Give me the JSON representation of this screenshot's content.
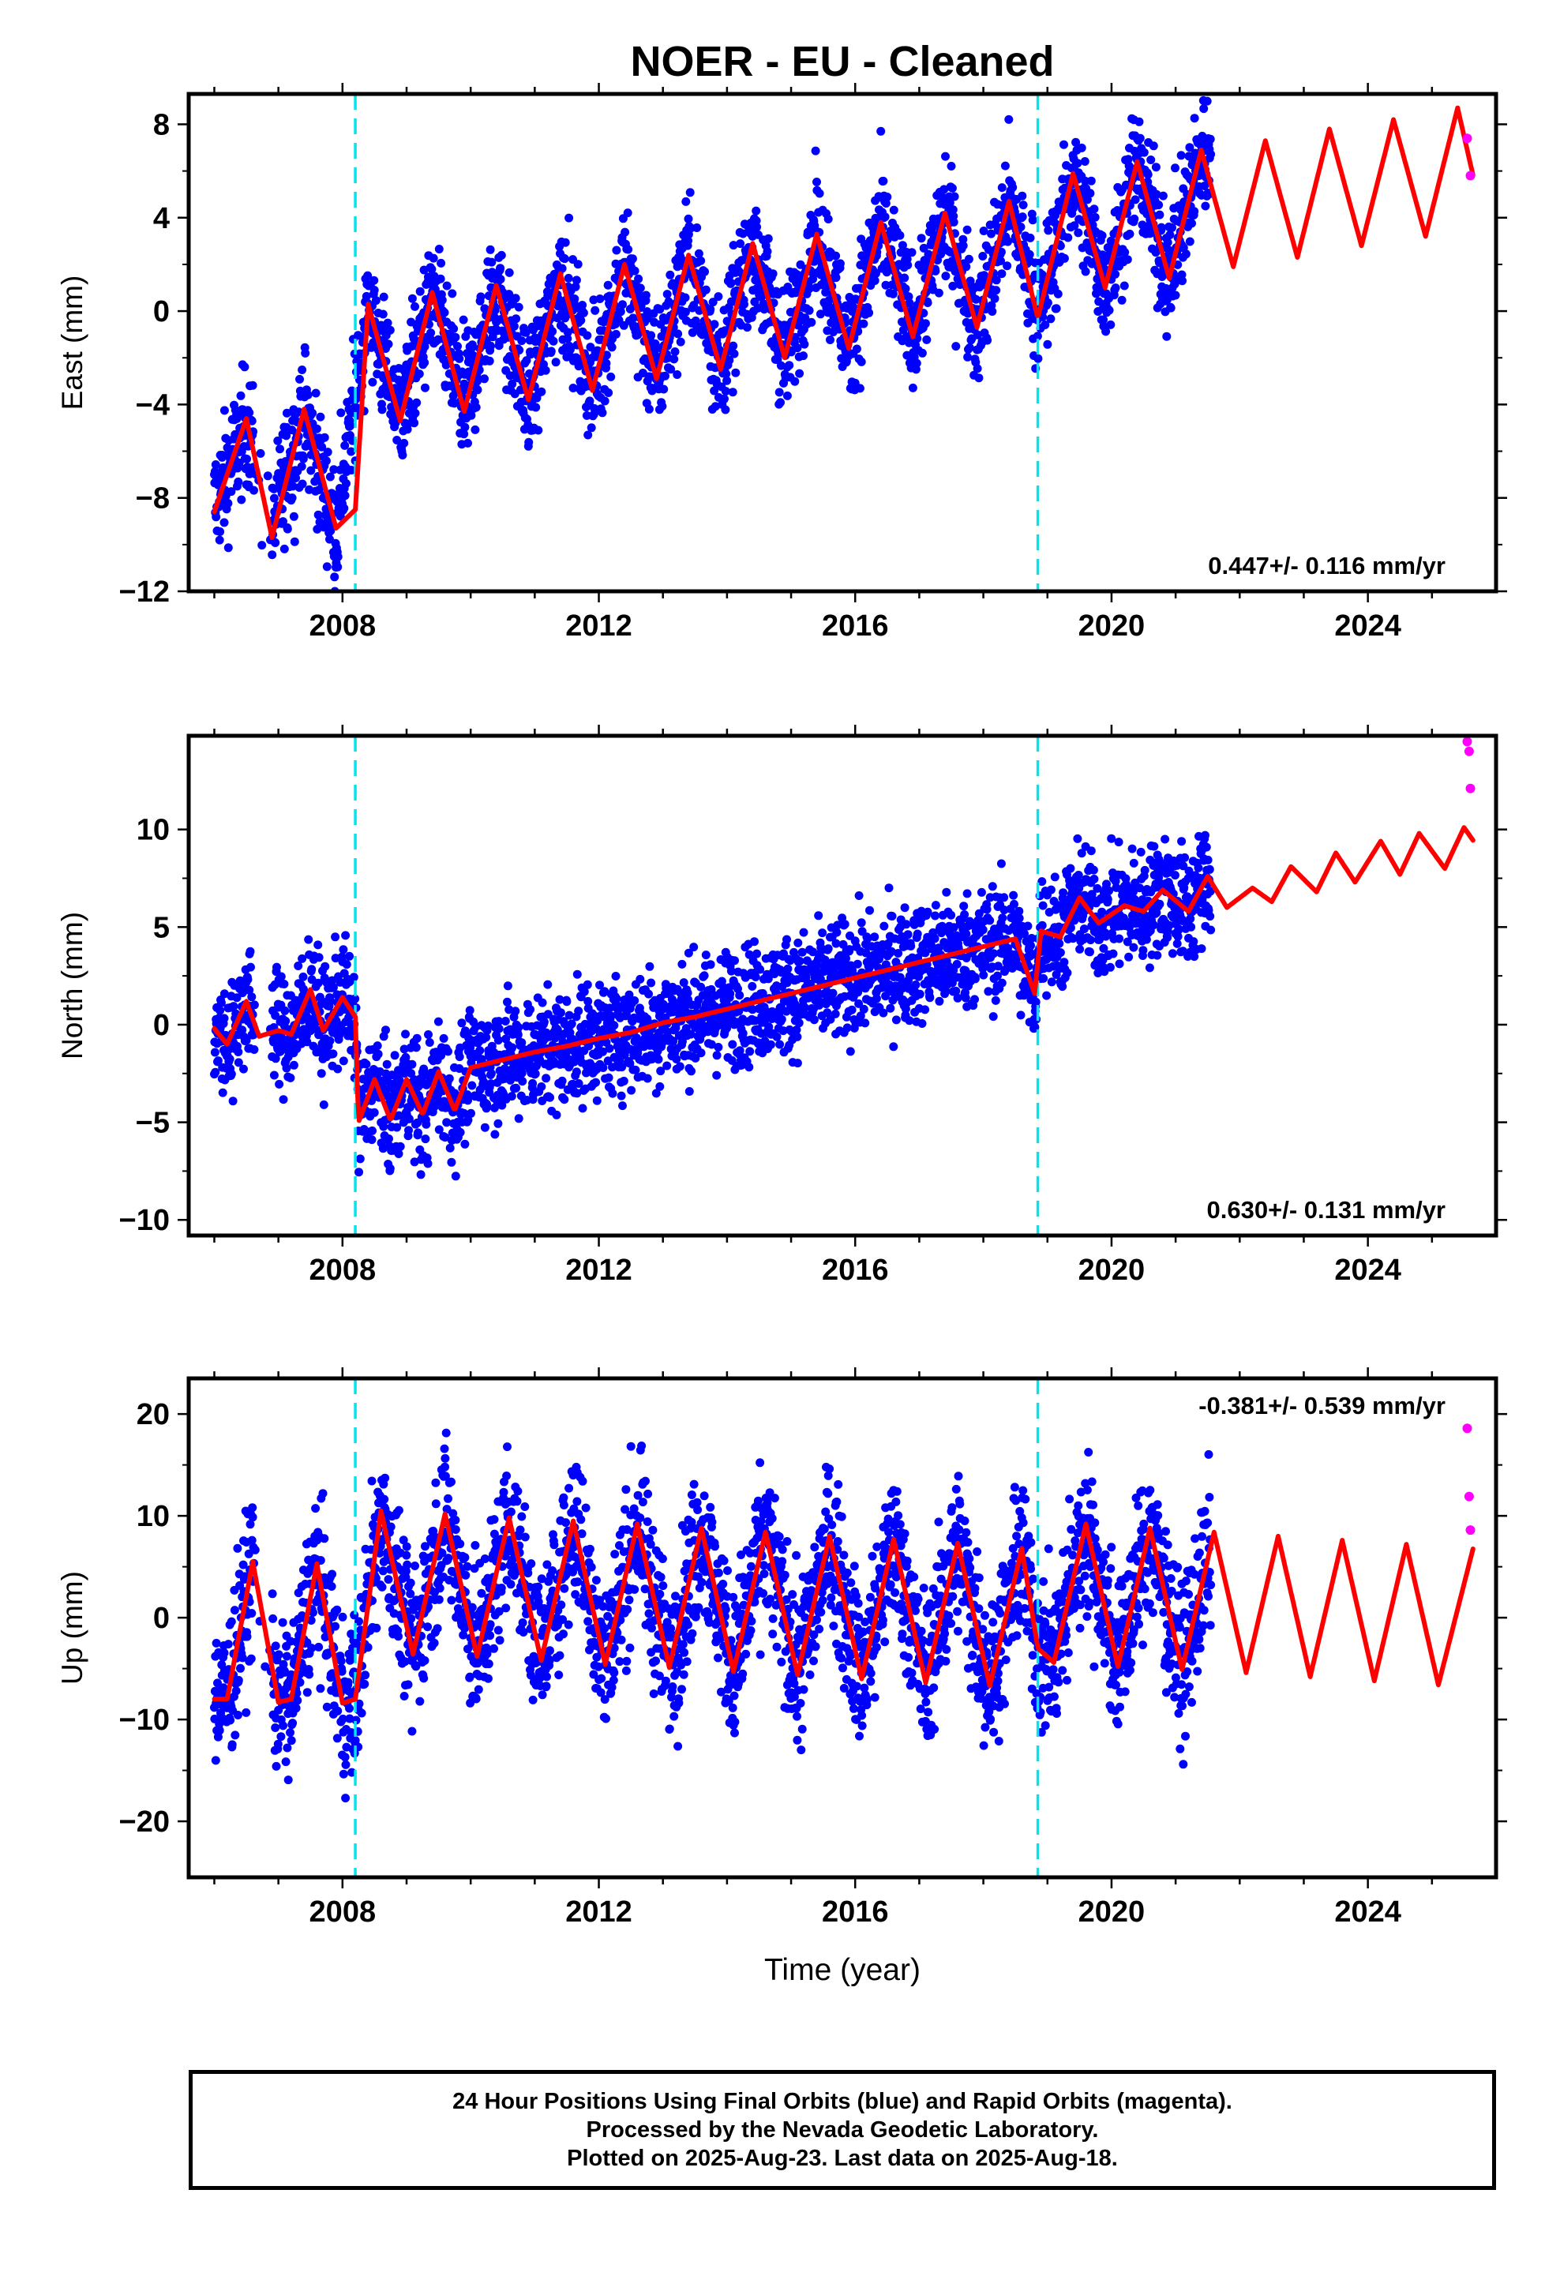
{
  "title": "NOER  - EU - Cleaned",
  "xlabel": "Time (year)",
  "footer": {
    "line1": "24 Hour Positions Using Final Orbits (blue) and Rapid Orbits (magenta).",
    "line2": "Processed by the Nevada Geodetic Laboratory.",
    "line3": "Plotted on 2025-Aug-23. Last data on 2025-Aug-18."
  },
  "colors": {
    "final_orbits": "#0000ff",
    "rapid_orbits": "#ff00ff",
    "model": "#ff0000",
    "offsets": "#00e5ee"
  },
  "chart_data": [
    {
      "type": "scatter",
      "ylabel": "East (mm)",
      "rate_label": "0.447+/- 0.116 mm/yr",
      "rate_position": "bottom-right",
      "xlim": [
        2005.6,
        2026.0
      ],
      "ylim": [
        -12,
        9.3
      ],
      "xticks": [
        2008,
        2012,
        2016,
        2020,
        2024
      ],
      "yticks": [
        -12,
        -8,
        -4,
        0,
        4,
        8
      ],
      "offset_lines": [
        2008.2,
        2018.85
      ],
      "series": [
        {
          "name": "model",
          "x": [
            2006.0,
            2006.5,
            2006.9,
            2007.4,
            2007.9,
            2008.2,
            2008.4,
            2008.9,
            2009.4,
            2009.9,
            2010.4,
            2010.9,
            2011.4,
            2011.9,
            2012.4,
            2012.9,
            2013.4,
            2013.9,
            2014.4,
            2014.9,
            2015.4,
            2015.9,
            2016.4,
            2016.9,
            2017.4,
            2017.9,
            2018.4,
            2018.85,
            2019.4,
            2019.9,
            2020.4,
            2020.9,
            2021.4,
            2021.9,
            2022.4,
            2022.9,
            2023.4,
            2023.9,
            2024.4,
            2024.9,
            2025.4,
            2025.65
          ],
          "y": [
            -8.6,
            -4.6,
            -9.7,
            -4.2,
            -9.3,
            -8.5,
            0.3,
            -4.7,
            0.8,
            -4.3,
            1.1,
            -3.8,
            1.6,
            -3.4,
            2.0,
            -2.9,
            2.4,
            -2.5,
            2.9,
            -2.0,
            3.3,
            -1.6,
            3.8,
            -1.1,
            4.2,
            -0.7,
            4.7,
            -0.3,
            5.9,
            1.0,
            6.4,
            1.4,
            6.9,
            1.9,
            7.3,
            2.3,
            7.8,
            2.8,
            8.2,
            3.2,
            8.7,
            5.7
          ]
        },
        {
          "name": "daily_mean",
          "x": [
            2006.0,
            2006.5,
            2006.9,
            2007.4,
            2007.9,
            2008.4,
            2008.9,
            2009.4,
            2009.9,
            2010.4,
            2010.9,
            2011.4,
            2011.9,
            2012.4,
            2012.9,
            2013.4,
            2013.9,
            2014.4,
            2014.9,
            2015.4,
            2015.9,
            2016.4,
            2016.9,
            2017.4,
            2017.9,
            2018.4,
            2018.9,
            2019.4,
            2019.9,
            2020.4,
            2020.9,
            2021.4
          ],
          "y": [
            -8.3,
            -4.8,
            -9.5,
            -4.3,
            -9.5,
            0.2,
            -4.5,
            0.6,
            -4.2,
            1.1,
            -3.9,
            1.5,
            -3.3,
            2.0,
            -2.8,
            2.4,
            -2.4,
            2.9,
            -2.0,
            3.3,
            -1.5,
            3.8,
            -1.0,
            4.2,
            -0.6,
            4.6,
            0.0,
            5.9,
            1.1,
            6.3,
            1.5,
            6.8
          ]
        },
        {
          "name": "rapid",
          "x": [
            2025.55,
            2025.6
          ],
          "y": [
            7.4,
            5.8
          ]
        }
      ]
    },
    {
      "type": "scatter",
      "ylabel": "North (mm)",
      "rate_label": "0.630+/- 0.131 mm/yr",
      "rate_position": "bottom-right",
      "xlim": [
        2005.6,
        2026.0
      ],
      "ylim": [
        -10.8,
        14.8
      ],
      "xticks": [
        2008,
        2012,
        2016,
        2020,
        2024
      ],
      "yticks": [
        -10,
        -5,
        0,
        5,
        10
      ],
      "offset_lines": [
        2008.2,
        2018.85
      ],
      "series": [
        {
          "name": "model",
          "x": [
            2006.0,
            2006.2,
            2006.5,
            2006.7,
            2007.0,
            2007.2,
            2007.5,
            2007.7,
            2008.0,
            2008.2,
            2008.25,
            2008.5,
            2008.75,
            2009.0,
            2009.25,
            2009.5,
            2009.75,
            2010.0,
            2010.5,
            2011.0,
            2011.5,
            2012.0,
            2012.5,
            2013.0,
            2013.5,
            2014.0,
            2014.5,
            2015.0,
            2015.5,
            2016.0,
            2016.5,
            2017.0,
            2017.5,
            2018.0,
            2018.5,
            2018.8,
            2018.9,
            2019.2,
            2019.5,
            2019.8,
            2020.2,
            2020.5,
            2020.8,
            2021.2,
            2021.5,
            2021.8,
            2022.2,
            2022.5,
            2022.8,
            2023.2,
            2023.5,
            2023.8,
            2024.2,
            2024.5,
            2024.8,
            2025.2,
            2025.5,
            2025.65
          ],
          "y": [
            -0.2,
            -1.0,
            1.2,
            -0.6,
            -0.3,
            -0.5,
            1.8,
            -0.3,
            1.4,
            0.4,
            -5.0,
            -2.8,
            -4.9,
            -2.8,
            -4.6,
            -2.4,
            -4.4,
            -2.2,
            -1.8,
            -1.4,
            -1.1,
            -0.7,
            -0.4,
            0.1,
            0.4,
            0.8,
            1.2,
            1.6,
            2.0,
            2.4,
            2.8,
            3.2,
            3.6,
            4.0,
            4.4,
            1.6,
            4.8,
            4.5,
            6.5,
            5.2,
            6.1,
            5.8,
            6.9,
            5.8,
            7.6,
            6.0,
            7.0,
            6.3,
            8.1,
            6.8,
            8.8,
            7.3,
            9.4,
            7.7,
            9.8,
            8.0,
            10.1,
            9.4
          ]
        },
        {
          "name": "rapid",
          "x": [
            2025.55,
            2025.58,
            2025.6
          ],
          "y": [
            14.5,
            14.0,
            12.1
          ]
        }
      ]
    },
    {
      "type": "scatter",
      "ylabel": "Up (mm)",
      "rate_label": "-0.381+/- 0.539 mm/yr",
      "rate_position": "top-right",
      "xlim": [
        2005.6,
        2026.0
      ],
      "ylim": [
        -25.5,
        23.5
      ],
      "xticks": [
        2008,
        2012,
        2016,
        2020,
        2024
      ],
      "yticks": [
        -20,
        -10,
        0,
        10,
        20
      ],
      "offset_lines": [
        2008.2,
        2018.85
      ],
      "series": [
        {
          "name": "model",
          "x": [
            2006.0,
            2006.2,
            2006.6,
            2007.0,
            2007.2,
            2007.6,
            2008.0,
            2008.2,
            2008.6,
            2009.1,
            2009.6,
            2010.1,
            2010.6,
            2011.1,
            2011.6,
            2012.1,
            2012.6,
            2013.1,
            2013.6,
            2014.1,
            2014.6,
            2015.1,
            2015.6,
            2016.1,
            2016.6,
            2017.1,
            2017.6,
            2018.1,
            2018.6,
            2018.85,
            2019.1,
            2019.6,
            2020.1,
            2020.6,
            2021.1,
            2021.6,
            2022.1,
            2022.6,
            2023.1,
            2023.6,
            2024.1,
            2024.6,
            2025.1,
            2025.65
          ],
          "y": [
            -8.0,
            -8.0,
            5.5,
            -8.3,
            -8.0,
            5.3,
            -8.4,
            -8.0,
            10.5,
            -3.6,
            10.2,
            -3.8,
            9.8,
            -4.2,
            9.5,
            -4.6,
            9.2,
            -4.9,
            8.8,
            -5.3,
            8.4,
            -5.6,
            8.0,
            -6.0,
            7.7,
            -6.4,
            7.3,
            -6.7,
            6.8,
            -3.0,
            -4.4,
            9.2,
            -4.8,
            8.8,
            -5.1,
            8.4,
            -5.4,
            8.0,
            -5.8,
            7.6,
            -6.2,
            7.2,
            -6.6,
            7.0
          ]
        },
        {
          "name": "rapid",
          "x": [
            2025.55,
            2025.58,
            2025.6
          ],
          "y": [
            18.6,
            11.9,
            8.6
          ]
        }
      ]
    }
  ]
}
